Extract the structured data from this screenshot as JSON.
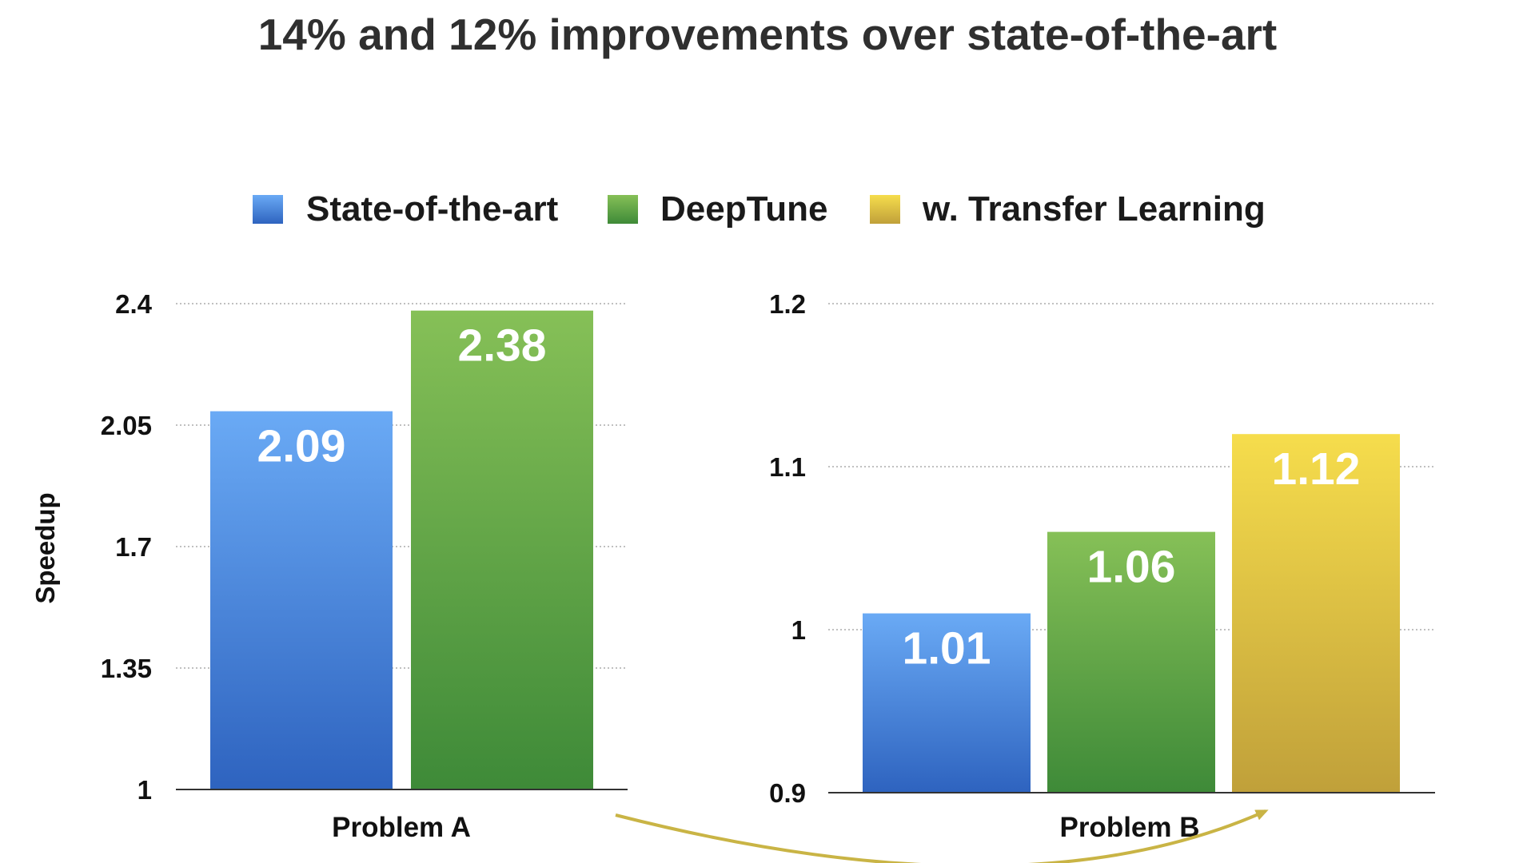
{
  "title": "14% and 12% improvements over state-of-the-art",
  "legend": [
    {
      "label": "State-of-the-art",
      "color": "#4a8fe0"
    },
    {
      "label": "DeepTune",
      "color": "#5aa845"
    },
    {
      "label": "w. Transfer Learning",
      "color": "#e4c23e"
    }
  ],
  "colors": {
    "blue_top": "#6aaaf5",
    "blue_bottom": "#2e63bf",
    "green_top": "#86c057",
    "green_bottom": "#3e8a38",
    "yellow_top": "#f6dd4c",
    "yellow_bottom": "#c0a03a",
    "arrow": "#c9b445"
  },
  "chart_data": [
    {
      "type": "bar",
      "categories": [
        "Problem A"
      ],
      "series": [
        {
          "name": "State-of-the-art",
          "values": [
            2.09
          ]
        },
        {
          "name": "DeepTune",
          "values": [
            2.38
          ]
        }
      ],
      "ylabel": "Speedup",
      "ylim": [
        1,
        2.4
      ],
      "yticks": [
        "1",
        "1.35",
        "1.7",
        "2.05",
        "2.4"
      ],
      "data_labels": [
        "2.09",
        "2.38"
      ],
      "grid": true
    },
    {
      "type": "bar",
      "categories": [
        "Problem B"
      ],
      "series": [
        {
          "name": "State-of-the-art",
          "values": [
            1.01
          ]
        },
        {
          "name": "DeepTune",
          "values": [
            1.06
          ]
        },
        {
          "name": "w. Transfer Learning",
          "values": [
            1.12
          ]
        }
      ],
      "ylim": [
        0.9,
        1.2
      ],
      "yticks": [
        "0.9",
        "1",
        "1.1",
        "1.2"
      ],
      "data_labels": [
        "1.01",
        "1.06",
        "1.12"
      ],
      "grid": true
    }
  ]
}
